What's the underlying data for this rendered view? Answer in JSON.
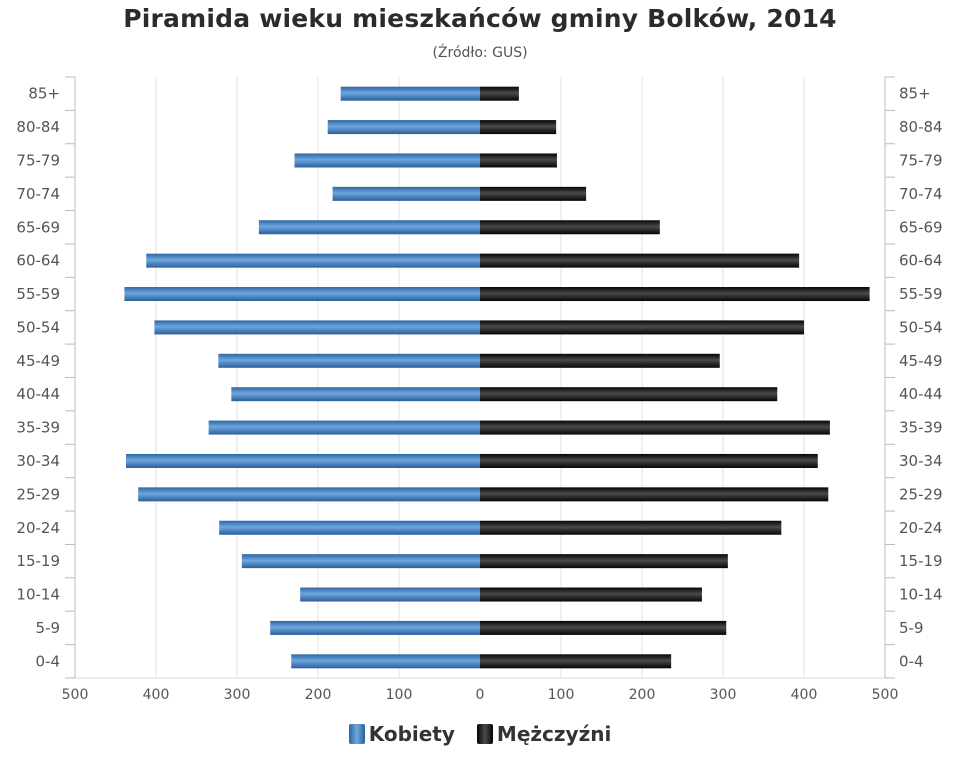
{
  "header": {
    "title": "Piramida wieku mieszkańców gminy Bolków, 2014",
    "subtitle": "(Źródło: GUS)"
  },
  "legend": {
    "items": [
      {
        "label": "Kobiety",
        "color": "#3f7fc4"
      },
      {
        "label": "Mężczyźni",
        "color": "#111111"
      }
    ]
  },
  "chart_data": {
    "type": "bar",
    "orientation": "horizontal",
    "title": "Piramida wieku mieszkańców gminy Bolków, 2014",
    "subtitle": "(Źródło: GUS)",
    "categories": [
      "85+",
      "80-84",
      "75-79",
      "70-74",
      "65-69",
      "60-64",
      "55-59",
      "50-54",
      "45-49",
      "40-44",
      "35-39",
      "30-34",
      "25-29",
      "20-24",
      "15-19",
      "10-14",
      "5-9",
      "0-4"
    ],
    "series": [
      {
        "name": "Kobiety",
        "color": "#3f7fc4",
        "direction": "left",
        "values": [
          172,
          188,
          229,
          182,
          273,
          412,
          439,
          402,
          323,
          307,
          335,
          437,
          422,
          322,
          294,
          222,
          259,
          233
        ]
      },
      {
        "name": "Mężczyźni",
        "color": "#111111",
        "direction": "right",
        "values": [
          48,
          94,
          95,
          131,
          222,
          394,
          481,
          400,
          296,
          367,
          432,
          417,
          430,
          372,
          306,
          274,
          304,
          236
        ]
      }
    ],
    "xticks": [
      "500",
      "400",
      "300",
      "200",
      "100",
      "0",
      "100",
      "200",
      "300",
      "400",
      "500"
    ],
    "xlim": [
      -500,
      500
    ],
    "grid": "vertical",
    "legend_position": "bottom"
  }
}
